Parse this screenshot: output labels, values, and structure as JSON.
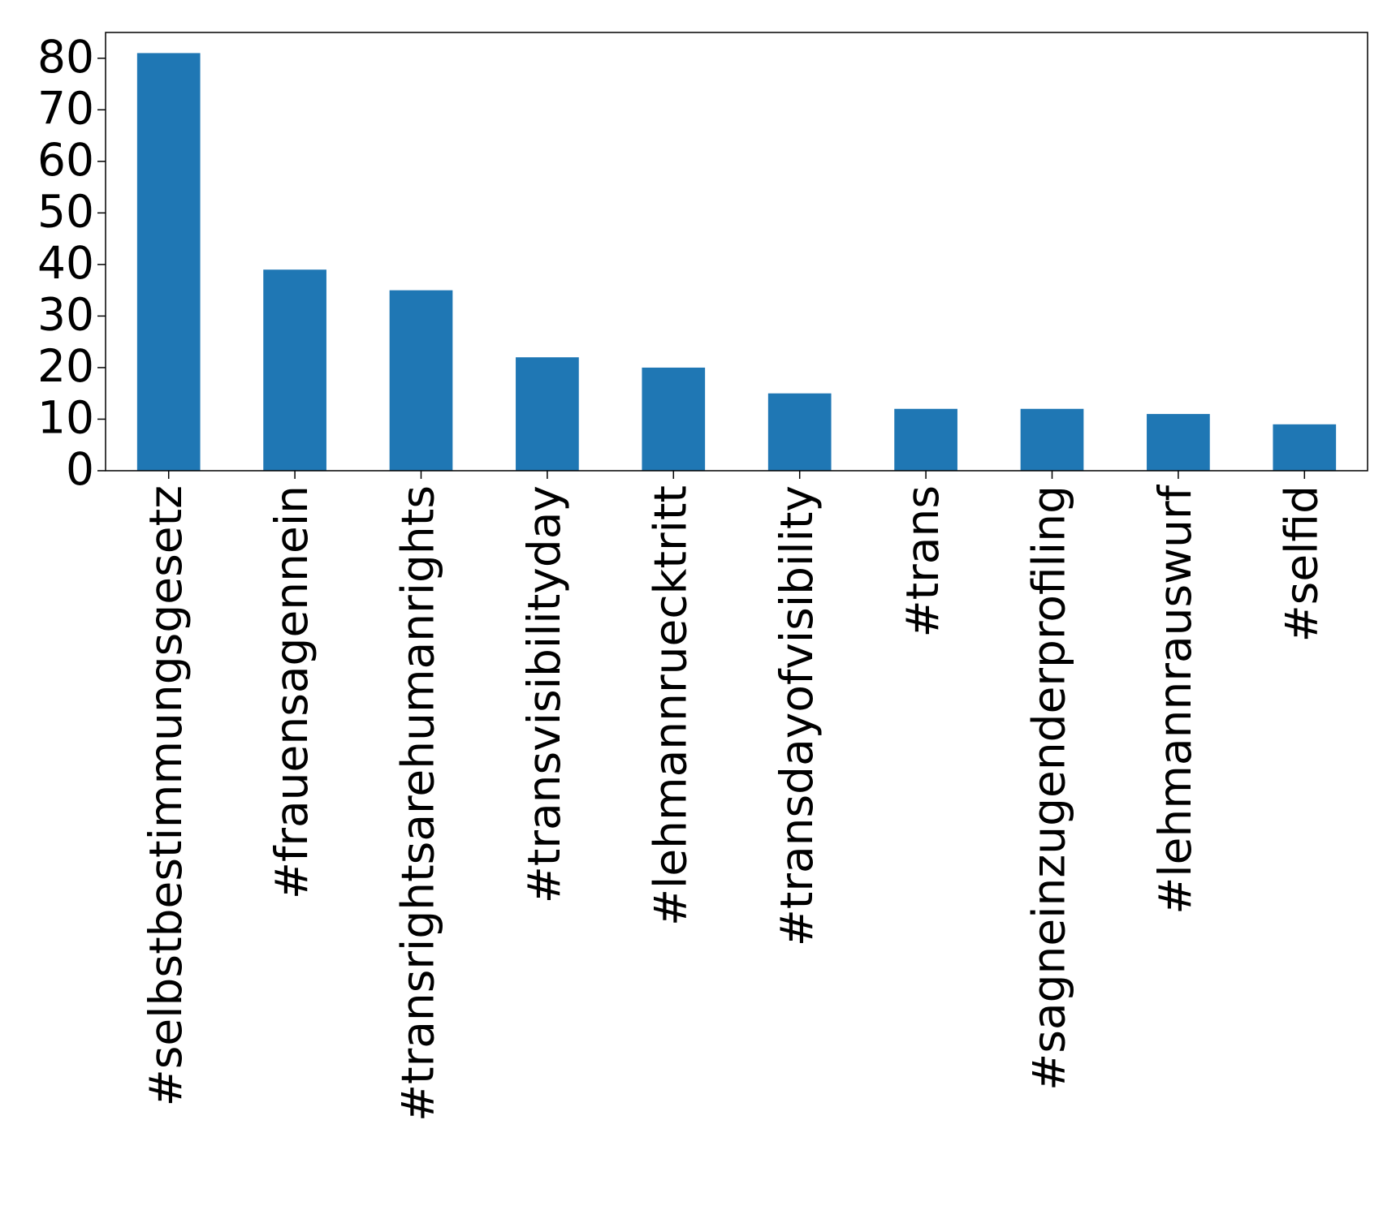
{
  "chart_data": {
    "type": "bar",
    "categories": [
      "#selbstbestimmungsgesetz",
      "#frauensagennein",
      "#transrightsarehumanrights",
      "#transvisibilityday",
      "#lehmannruecktritt",
      "#transdayofvisibility",
      "#trans",
      "#sagneinzugenderprofiling",
      "#lehmannrauswurf",
      "#selfid"
    ],
    "values": [
      81,
      39,
      35,
      22,
      20,
      15,
      12,
      12,
      11,
      9
    ],
    "color": "#1f77b4",
    "ylim": [
      0,
      85
    ],
    "yticks": [
      0,
      10,
      20,
      30,
      40,
      50,
      60,
      70,
      80
    ],
    "grid": false
  }
}
